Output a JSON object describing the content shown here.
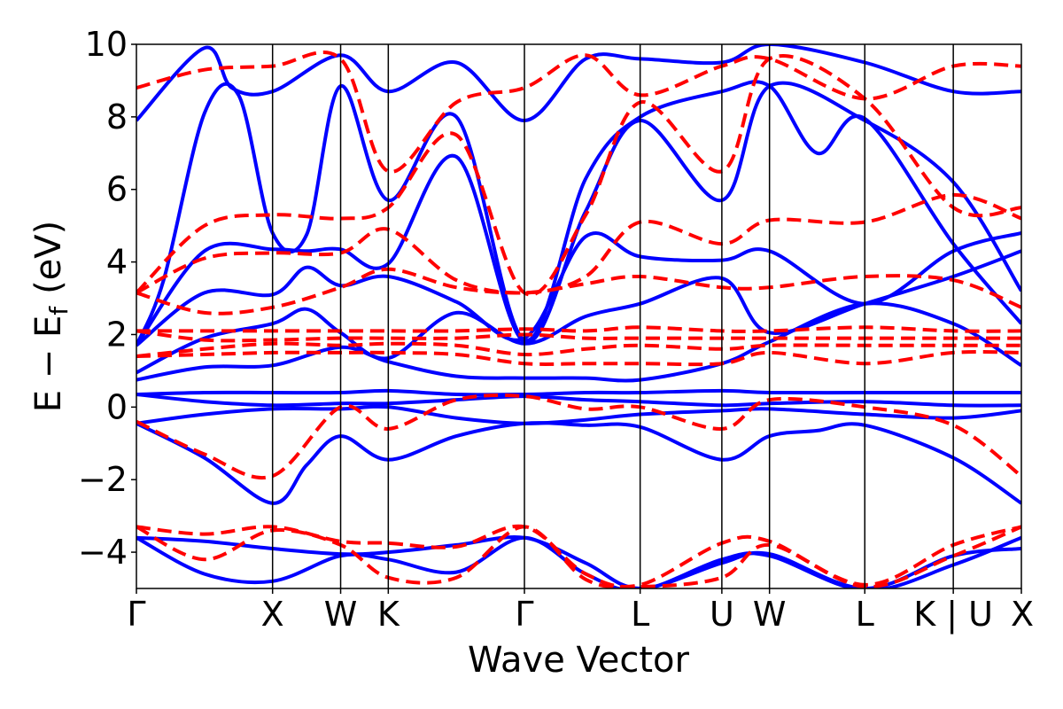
{
  "chart_data": {
    "type": "line",
    "title": "",
    "xlabel": "Wave Vector",
    "ylabel_main": "E − E",
    "ylabel_sub": "f",
    "ylabel_unit": "(eV)",
    "ylim": [
      -5,
      10
    ],
    "xlim": [
      0,
      6.5
    ],
    "yticks": [
      -4,
      -2,
      0,
      2,
      4,
      6,
      8,
      10
    ],
    "ytick_labels": [
      "−4",
      "−2",
      "0",
      "2",
      "4",
      "6",
      "8",
      "10"
    ],
    "high_symmetry_points": [
      {
        "label": "Γ",
        "x": 0.0
      },
      {
        "label": "X",
        "x": 1.0
      },
      {
        "label": "W",
        "x": 1.5
      },
      {
        "label": "K",
        "x": 1.85
      },
      {
        "label": "Γ",
        "x": 2.85
      },
      {
        "label": "L",
        "x": 3.7
      },
      {
        "label": "U",
        "x": 4.3
      },
      {
        "label": "W",
        "x": 4.65
      },
      {
        "label": "L",
        "x": 5.35
      },
      {
        "label": "K | U",
        "x": 6.0
      },
      {
        "label": "X",
        "x": 6.5
      }
    ],
    "series": [
      {
        "style": "solid",
        "color": "#0000ff",
        "bands": [
          {
            "x": [
              0,
              0.5,
              1.0,
              1.25,
              1.5,
              1.85,
              2.35,
              2.85,
              3.3,
              3.7,
              4.3,
              4.65,
              5.0,
              5.35,
              6.0,
              6.5
            ],
            "y": [
              -0.45,
              -1.4,
              -2.65,
              -1.6,
              -0.8,
              -1.45,
              -0.8,
              -0.45,
              -0.5,
              -0.55,
              -1.45,
              -0.8,
              -0.65,
              -0.5,
              -1.4,
              -2.65
            ]
          },
          {
            "x": [
              0,
              0.5,
              1.0,
              1.5,
              1.85,
              2.35,
              2.85,
              3.3,
              3.7,
              4.3,
              4.65,
              5.35,
              6.0,
              6.5
            ],
            "y": [
              -0.45,
              -0.2,
              -0.05,
              -0.05,
              0.0,
              -0.3,
              -0.45,
              -0.35,
              -0.2,
              -0.1,
              -0.05,
              -0.2,
              -0.3,
              -0.1
            ]
          },
          {
            "x": [
              0,
              0.5,
              1.0,
              1.5,
              1.85,
              2.35,
              2.85,
              3.3,
              3.7,
              4.3,
              4.65,
              5.35,
              6.0,
              6.5
            ],
            "y": [
              0.35,
              0.15,
              0.05,
              0.1,
              0.1,
              0.2,
              0.3,
              0.2,
              0.15,
              0.05,
              0.1,
              0.15,
              0.05,
              0.05
            ]
          },
          {
            "x": [
              0,
              0.5,
              1.0,
              1.5,
              1.85,
              2.35,
              2.85,
              3.3,
              3.7,
              4.3,
              4.65,
              5.35,
              6.0,
              6.5
            ],
            "y": [
              0.35,
              0.4,
              0.4,
              0.4,
              0.45,
              0.35,
              0.35,
              0.4,
              0.4,
              0.45,
              0.4,
              0.4,
              0.4,
              0.4
            ]
          },
          {
            "x": [
              0,
              0.5,
              1.0,
              1.5,
              1.85,
              2.35,
              2.85,
              3.3,
              3.7,
              4.3,
              4.65,
              5.35,
              6.0,
              6.5
            ],
            "y": [
              0.75,
              1.1,
              1.15,
              1.65,
              1.25,
              0.85,
              0.8,
              0.8,
              0.75,
              1.2,
              1.8,
              2.85,
              2.3,
              1.15
            ]
          },
          {
            "x": [
              0,
              0.5,
              1.0,
              1.25,
              1.5,
              1.85,
              2.35,
              2.85,
              3.3,
              3.7,
              4.3,
              4.65,
              5.35,
              6.0,
              6.5
            ],
            "y": [
              0.95,
              1.9,
              2.3,
              2.7,
              2.05,
              1.35,
              2.6,
              1.75,
              2.5,
              2.85,
              3.55,
              2.05,
              2.85,
              3.6,
              4.3
            ]
          },
          {
            "x": [
              0,
              0.5,
              1.0,
              1.25,
              1.5,
              1.85,
              2.35,
              2.85,
              3.3,
              3.7,
              4.3,
              4.65,
              5.35,
              6.0,
              6.5
            ],
            "y": [
              1.7,
              3.15,
              3.1,
              3.85,
              3.35,
              3.6,
              2.9,
              1.9,
              4.7,
              4.15,
              4.05,
              4.3,
              2.85,
              4.3,
              4.8
            ]
          },
          {
            "x": [
              0,
              0.5,
              1.0,
              1.25,
              1.5,
              1.85,
              2.35,
              2.85,
              3.3,
              3.7,
              4.3,
              4.65,
              5.35,
              6.0,
              6.5
            ],
            "y": [
              1.7,
              4.3,
              4.35,
              4.3,
              4.35,
              3.95,
              6.9,
              1.8,
              5.4,
              7.9,
              5.7,
              8.85,
              7.9,
              6.2,
              3.2
            ]
          },
          {
            "x": [
              0,
              0.2,
              0.5,
              0.75,
              1.0,
              1.25,
              1.5,
              1.85,
              2.35,
              2.85,
              3.3,
              3.7,
              4.3,
              4.65,
              5.0,
              5.35,
              6.0,
              6.5
            ],
            "y": [
              1.7,
              3.5,
              8.1,
              8.6,
              4.8,
              4.75,
              8.85,
              5.7,
              8.0,
              1.85,
              6.3,
              8.0,
              8.7,
              8.85,
              7.0,
              7.95,
              4.5,
              2.3
            ]
          },
          {
            "x": [
              0,
              0.5,
              0.7,
              1.0,
              1.5,
              1.85,
              2.35,
              2.85,
              3.3,
              3.7,
              4.3,
              4.65,
              5.35,
              6.0,
              6.5
            ],
            "y": [
              7.9,
              9.9,
              8.8,
              8.7,
              9.7,
              8.7,
              9.5,
              7.9,
              9.6,
              9.6,
              9.5,
              10.0,
              9.5,
              8.7,
              8.7
            ]
          },
          {
            "x": [
              0,
              0.5,
              1.0,
              1.5,
              1.85,
              2.35,
              2.85,
              3.3,
              3.7,
              4.3,
              4.65,
              5.35,
              6.0,
              6.5
            ],
            "y": [
              -3.6,
              -3.7,
              -3.9,
              -4.05,
              -4.0,
              -3.8,
              -3.6,
              -4.3,
              -5.0,
              -4.3,
              -4.05,
              -5.0,
              -4.1,
              -3.9
            ]
          },
          {
            "x": [
              0,
              0.5,
              1.0,
              1.5,
              1.85,
              2.35,
              2.85,
              3.3,
              3.7,
              4.3,
              4.65,
              5.35,
              6.0,
              6.5
            ],
            "y": [
              -3.6,
              -4.6,
              -4.8,
              -4.1,
              -4.2,
              -4.55,
              -3.6,
              -4.6,
              -5.05,
              -4.2,
              -4.1,
              -5.05,
              -4.35,
              -3.6
            ]
          }
        ]
      },
      {
        "style": "dashed",
        "color": "#ff0000",
        "bands": [
          {
            "x": [
              0,
              0.5,
              1.0,
              1.5,
              1.85,
              2.35,
              2.85,
              3.3,
              3.7,
              4.3,
              4.65,
              5.35,
              6.0,
              6.5
            ],
            "y": [
              -0.4,
              -1.3,
              -1.9,
              0.0,
              -0.6,
              0.2,
              0.3,
              -0.05,
              0.0,
              -0.6,
              0.2,
              0.0,
              -0.5,
              -1.9
            ]
          },
          {
            "x": [
              0,
              0.5,
              1.0,
              1.5,
              1.85,
              2.35,
              2.85,
              3.3,
              3.7,
              4.3,
              4.65,
              5.35,
              6.0,
              6.5
            ],
            "y": [
              1.4,
              1.45,
              1.5,
              1.5,
              1.5,
              1.45,
              1.2,
              1.2,
              1.2,
              1.2,
              1.5,
              1.2,
              1.5,
              1.5
            ]
          },
          {
            "x": [
              0,
              0.5,
              1.0,
              1.5,
              1.85,
              2.35,
              2.85,
              3.3,
              3.7,
              4.3,
              4.65,
              5.35,
              6.0,
              6.5
            ],
            "y": [
              1.4,
              1.6,
              1.75,
              1.7,
              1.75,
              1.7,
              1.45,
              1.6,
              1.7,
              1.6,
              1.7,
              1.7,
              1.7,
              1.7
            ]
          },
          {
            "x": [
              0,
              0.5,
              1.0,
              1.5,
              1.85,
              2.35,
              2.85,
              3.3,
              3.7,
              4.3,
              4.65,
              5.35,
              6.0,
              6.5
            ],
            "y": [
              2.1,
              1.85,
              1.85,
              1.9,
              1.9,
              1.9,
              2.0,
              1.9,
              1.9,
              1.9,
              1.9,
              1.9,
              1.9,
              1.9
            ]
          },
          {
            "x": [
              0,
              0.5,
              1.0,
              1.5,
              1.85,
              2.35,
              2.85,
              3.3,
              3.7,
              4.3,
              4.65,
              5.35,
              6.0,
              6.5
            ],
            "y": [
              2.1,
              2.1,
              2.1,
              2.1,
              2.1,
              2.1,
              2.15,
              2.1,
              2.2,
              2.1,
              2.1,
              2.2,
              2.1,
              2.1
            ]
          },
          {
            "x": [
              0,
              0.5,
              1.0,
              1.5,
              1.85,
              2.35,
              2.85,
              3.3,
              3.7,
              4.3,
              4.65,
              5.35,
              6.0,
              6.5
            ],
            "y": [
              3.15,
              2.6,
              2.75,
              3.3,
              3.8,
              3.3,
              3.15,
              3.4,
              3.6,
              3.3,
              3.3,
              3.6,
              3.5,
              2.75
            ]
          },
          {
            "x": [
              0,
              0.5,
              1.0,
              1.5,
              1.85,
              2.35,
              2.85,
              3.3,
              3.7,
              4.3,
              4.65,
              5.35,
              6.0,
              6.5
            ],
            "y": [
              3.15,
              4.1,
              4.25,
              4.25,
              4.9,
              3.5,
              3.15,
              3.6,
              5.1,
              4.5,
              5.15,
              5.1,
              5.85,
              5.2
            ]
          },
          {
            "x": [
              0,
              0.5,
              1.0,
              1.5,
              1.85,
              2.35,
              2.85,
              3.3,
              3.7,
              4.3,
              4.65,
              5.35,
              6.0,
              6.5
            ],
            "y": [
              3.15,
              5.0,
              5.3,
              5.2,
              5.5,
              7.5,
              3.15,
              5.3,
              8.4,
              6.5,
              9.6,
              8.5,
              5.5,
              5.5
            ]
          },
          {
            "x": [
              0,
              0.5,
              1.0,
              1.5,
              1.85,
              2.35,
              2.85,
              3.3,
              3.7,
              4.3,
              4.65,
              5.35,
              6.0,
              6.5
            ],
            "y": [
              8.8,
              9.3,
              9.4,
              9.6,
              6.5,
              8.4,
              8.8,
              9.7,
              8.6,
              9.4,
              9.6,
              8.5,
              9.4,
              9.4
            ]
          },
          {
            "x": [
              0,
              0.5,
              1.0,
              1.5,
              1.85,
              2.35,
              2.85,
              3.3,
              3.7,
              4.3,
              4.65,
              5.35,
              6.0,
              6.5
            ],
            "y": [
              -3.3,
              -3.5,
              -3.3,
              -3.7,
              -3.75,
              -3.85,
              -3.3,
              -4.6,
              -4.9,
              -3.75,
              -3.7,
              -4.9,
              -3.8,
              -3.3
            ]
          },
          {
            "x": [
              0,
              0.5,
              1.0,
              1.5,
              1.85,
              2.35,
              2.85,
              3.3,
              3.7,
              4.3,
              4.65,
              5.35,
              6.0,
              6.5
            ],
            "y": [
              -3.3,
              -4.2,
              -3.4,
              -3.8,
              -4.7,
              -4.7,
              -3.3,
              -4.75,
              -4.95,
              -4.7,
              -3.8,
              -4.95,
              -4.1,
              -3.3
            ]
          }
        ]
      }
    ]
  }
}
